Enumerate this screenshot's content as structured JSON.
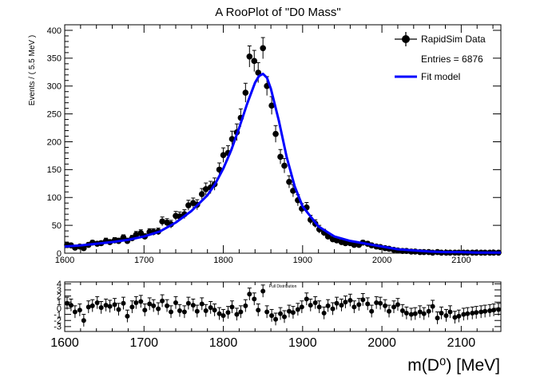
{
  "chart_data": [
    {
      "type": "scatter",
      "title": "A RooPlot of \"D0 Mass\"",
      "ylabel": "Events / ( 5.5 MeV )",
      "xlabel": "",
      "xlim": [
        1600,
        2150
      ],
      "ylim": [
        0,
        410
      ],
      "xticks": [
        1600,
        1700,
        1800,
        1900,
        2000,
        2100
      ],
      "yticks": [
        0,
        50,
        100,
        150,
        200,
        250,
        300,
        350,
        400
      ],
      "grid": false,
      "legend": {
        "placement": "top-right",
        "entries": [
          {
            "label": "RapidSim Data",
            "marker": "circle",
            "color": "#000000"
          },
          {
            "label": "Entries = 6876"
          },
          {
            "label": "Fit model",
            "marker": "line",
            "color": "#0000ff"
          }
        ]
      },
      "series": [
        {
          "name": "RapidSim Data",
          "color": "#000000",
          "x": [
            1603,
            1608,
            1613,
            1619,
            1624,
            1630,
            1635,
            1641,
            1646,
            1652,
            1657,
            1663,
            1668,
            1674,
            1679,
            1685,
            1690,
            1696,
            1701,
            1707,
            1712,
            1718,
            1723,
            1729,
            1734,
            1740,
            1745,
            1751,
            1756,
            1762,
            1767,
            1773,
            1778,
            1784,
            1789,
            1795,
            1800,
            1806,
            1811,
            1817,
            1822,
            1828,
            1833,
            1839,
            1844,
            1850,
            1855,
            1861,
            1866,
            1872,
            1877,
            1883,
            1888,
            1894,
            1899,
            1905,
            1910,
            1916,
            1921,
            1927,
            1932,
            1938,
            1943,
            1949,
            1954,
            1960,
            1965,
            1971,
            1976,
            1982,
            1987,
            1993,
            1998,
            2004,
            2009,
            2015,
            2020,
            2026,
            2031,
            2037,
            2042,
            2048,
            2053,
            2059,
            2064,
            2070,
            2075,
            2081,
            2086,
            2092,
            2097,
            2103,
            2108,
            2114,
            2119,
            2125,
            2130,
            2136,
            2141,
            2147
          ],
          "y": [
            15,
            14,
            10,
            12,
            9,
            15,
            19,
            17,
            18,
            22,
            20,
            23,
            22,
            28,
            22,
            27,
            33,
            36,
            30,
            38,
            38,
            39,
            57,
            55,
            52,
            67,
            66,
            70,
            86,
            90,
            87,
            106,
            115,
            118,
            124,
            150,
            176,
            180,
            205,
            217,
            243,
            288,
            353,
            345,
            324,
            368,
            300,
            265,
            214,
            173,
            157,
            128,
            112,
            95,
            80,
            82,
            60,
            53,
            43,
            37,
            30,
            25,
            23,
            20,
            18,
            18,
            15,
            15,
            19,
            17,
            14,
            12,
            11,
            9,
            8,
            6,
            5,
            4,
            4,
            3,
            3,
            2,
            2,
            2,
            1,
            2,
            1,
            1,
            1,
            1,
            1,
            1,
            1,
            1,
            1,
            1,
            1,
            1,
            1,
            1
          ],
          "yerr": [
            4,
            4,
            3,
            3,
            3,
            4,
            4,
            4,
            4,
            5,
            4,
            5,
            5,
            5,
            5,
            5,
            6,
            6,
            5,
            6,
            6,
            6,
            8,
            7,
            7,
            8,
            8,
            8,
            9,
            9,
            9,
            10,
            11,
            11,
            11,
            12,
            13,
            13,
            14,
            15,
            16,
            17,
            19,
            19,
            18,
            19,
            17,
            16,
            15,
            13,
            13,
            11,
            11,
            10,
            9,
            9,
            8,
            7,
            7,
            6,
            5,
            5,
            5,
            4,
            4,
            4,
            4,
            4,
            4,
            4,
            4,
            3,
            3,
            3,
            3,
            2,
            2,
            2,
            2,
            2,
            2,
            1,
            1,
            1,
            1,
            1,
            1,
            1,
            1,
            1,
            1,
            1,
            1,
            1,
            1,
            1,
            1,
            1,
            1,
            1
          ]
        },
        {
          "name": "Fit model",
          "color": "#0000ff",
          "x": [
            1600,
            1620,
            1640,
            1660,
            1680,
            1700,
            1720,
            1740,
            1760,
            1780,
            1790,
            1800,
            1810,
            1820,
            1830,
            1840,
            1845,
            1850,
            1855,
            1860,
            1870,
            1880,
            1890,
            1900,
            1920,
            1940,
            1960,
            1980,
            2000,
            2020,
            2040,
            2060,
            2080,
            2100,
            2120,
            2150
          ],
          "y": [
            12,
            14,
            17,
            20,
            24,
            30,
            39,
            55,
            76,
            104,
            125,
            152,
            185,
            225,
            268,
            306,
            318,
            322,
            315,
            295,
            238,
            172,
            120,
            84,
            48,
            30,
            22,
            17,
            12,
            7,
            5,
            3,
            2,
            2,
            1,
            1
          ]
        }
      ]
    },
    {
      "type": "scatter",
      "title": "Pull Distribution",
      "xlabel": "m(D⁰) [MeV]",
      "ylabel": "",
      "xlim": [
        1600,
        2150
      ],
      "ylim": [
        -3.8,
        4.3
      ],
      "xticks": [
        1600,
        1700,
        1800,
        1900,
        2000,
        2100
      ],
      "yticks": [
        -3,
        -2,
        -1,
        0,
        1,
        2,
        3,
        4
      ],
      "grid": false,
      "series": [
        {
          "x": [
            1603,
            1608,
            1613,
            1619,
            1624,
            1630,
            1635,
            1641,
            1646,
            1652,
            1657,
            1663,
            1668,
            1674,
            1679,
            1685,
            1690,
            1696,
            1701,
            1707,
            1712,
            1718,
            1723,
            1729,
            1734,
            1740,
            1745,
            1751,
            1756,
            1762,
            1767,
            1773,
            1778,
            1784,
            1789,
            1795,
            1800,
            1806,
            1811,
            1817,
            1822,
            1828,
            1833,
            1839,
            1844,
            1850,
            1855,
            1861,
            1866,
            1872,
            1877,
            1883,
            1888,
            1894,
            1899,
            1905,
            1910,
            1916,
            1921,
            1927,
            1932,
            1938,
            1943,
            1949,
            1954,
            1960,
            1965,
            1971,
            1976,
            1982,
            1987,
            1993,
            1998,
            2004,
            2009,
            2015,
            2020,
            2026,
            2031,
            2037,
            2042,
            2048,
            2053,
            2059,
            2064,
            2070,
            2075,
            2081,
            2086,
            2092,
            2097,
            2103,
            2108,
            2114,
            2119,
            2125,
            2130,
            2136,
            2141,
            2147
          ],
          "y": [
            0.8,
            0.5,
            -0.6,
            -0.3,
            -2.0,
            0.2,
            0.4,
            0.9,
            0.1,
            0.5,
            0.3,
            0.6,
            -0.2,
            0.8,
            -1.3,
            0.2,
            0.9,
            1.1,
            -0.3,
            0.7,
            0.4,
            -0.1,
            1.2,
            0.4,
            -0.6,
            0.9,
            -0.4,
            -0.6,
            0.8,
            0.5,
            -0.5,
            0.7,
            -0.4,
            0.1,
            -0.3,
            -0.9,
            -1.2,
            -0.7,
            0.2,
            -1.0,
            -0.6,
            0.4,
            2.3,
            1.5,
            -0.3,
            2.8,
            -0.6,
            -1.2,
            -1.8,
            -0.9,
            -1.4,
            -0.5,
            -0.7,
            -0.2,
            0.2,
            1.5,
            0.5,
            0.9,
            0.2,
            -0.8,
            0.4,
            -0.1,
            0.8,
            0.5,
            1.0,
            1.3,
            0.2,
            0.6,
            1.4,
            0.7,
            -0.5,
            0.9,
            0.8,
            0.4,
            -0.5,
            0.2,
            0.6,
            -0.4,
            -0.8,
            -1.0,
            -0.9,
            -0.6,
            -0.9,
            -0.5,
            0.3,
            -1.6,
            -0.8,
            -1.2,
            -0.6,
            -1.5,
            -1.3,
            -1.0,
            -0.9,
            -0.8,
            -0.7,
            -0.6,
            -0.5,
            -0.4,
            -0.3,
            -0.2
          ],
          "yerr": [
            1,
            1,
            1,
            1,
            1,
            1,
            1,
            1,
            1,
            1,
            1,
            1,
            1,
            1,
            1,
            1,
            1,
            1,
            1,
            1,
            1,
            1,
            1,
            1,
            1,
            1,
            1,
            1,
            1,
            1,
            1,
            1,
            1,
            1,
            1,
            1,
            1,
            1,
            1,
            1,
            1,
            1,
            1,
            1,
            1,
            1,
            1,
            1,
            1,
            1,
            1,
            1,
            1,
            1,
            1,
            1,
            1,
            1,
            1,
            1,
            1,
            1,
            1,
            1,
            1,
            1,
            1,
            1,
            1,
            1,
            1,
            1,
            1,
            1,
            1,
            1,
            1,
            1,
            1,
            1,
            1,
            1,
            1,
            1,
            1,
            1,
            1,
            1,
            1,
            1,
            1,
            1,
            1,
            1,
            1,
            1,
            1,
            1,
            1,
            1
          ]
        }
      ]
    }
  ]
}
